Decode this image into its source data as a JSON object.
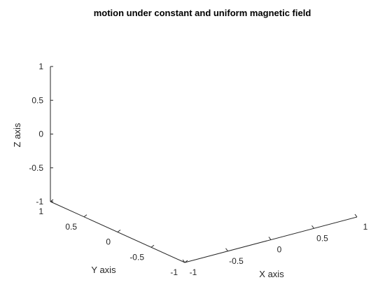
{
  "chart_data": {
    "type": "line",
    "projection": "3d",
    "title": "motion under constant and uniform magnetic field",
    "xlabel": "X axis",
    "ylabel": "Y axis",
    "zlabel": "Z axis",
    "xlim": [
      -1,
      1
    ],
    "ylim": [
      -1,
      1
    ],
    "zlim": [
      -1,
      1
    ],
    "x_ticks": [
      "-1",
      "-0.5",
      "0",
      "0.5",
      "1"
    ],
    "y_ticks": [
      "-1",
      "-0.5",
      "0",
      "0.5",
      "1"
    ],
    "z_ticks": [
      "-1",
      "-0.5",
      "0",
      "0.5",
      "1"
    ],
    "series": [],
    "grid": false,
    "axis_color": "#262626"
  }
}
